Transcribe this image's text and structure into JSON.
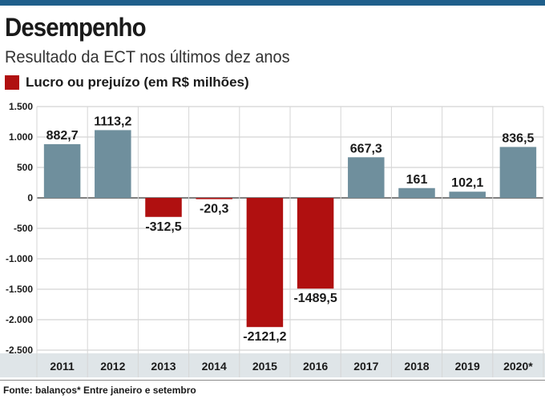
{
  "header": {
    "title": "Desempenho",
    "subtitle": "Resultado da ECT nos últimos dez anos"
  },
  "legend": {
    "label": "Lucro ou prejuízo (em R$ milhões)"
  },
  "colors": {
    "accent_bar": "#1f5f8b",
    "positive": "#6f8f9d",
    "negative": "#b01010",
    "axis_band": "#dfe5e8"
  },
  "chart_data": {
    "type": "bar",
    "categories": [
      "2011",
      "2012",
      "2013",
      "2014",
      "2015",
      "2016",
      "2017",
      "2018",
      "2019",
      "2020*"
    ],
    "values": [
      882.7,
      1113.2,
      -312.5,
      -20.3,
      -2121.2,
      -1489.5,
      667.3,
      161,
      102.1,
      836.5
    ],
    "value_labels": [
      "882,7",
      "1113,2",
      "-312,5",
      "-20,3",
      "-2121,2",
      "-1489,5",
      "667,3",
      "161",
      "102,1",
      "836,5"
    ],
    "yticks": [
      1500,
      1000,
      500,
      0,
      -500,
      -1000,
      -1500,
      -2000,
      -2500
    ],
    "ytick_labels": [
      "1.500",
      "1.000",
      "500",
      "0",
      "-500",
      "-1.000",
      "-1.500",
      "-2.000",
      "-2.500"
    ],
    "ylim": [
      -2500,
      1500
    ],
    "grid": true
  },
  "footer": {
    "source": "Fonte: balanços* Entre janeiro e setembro"
  }
}
